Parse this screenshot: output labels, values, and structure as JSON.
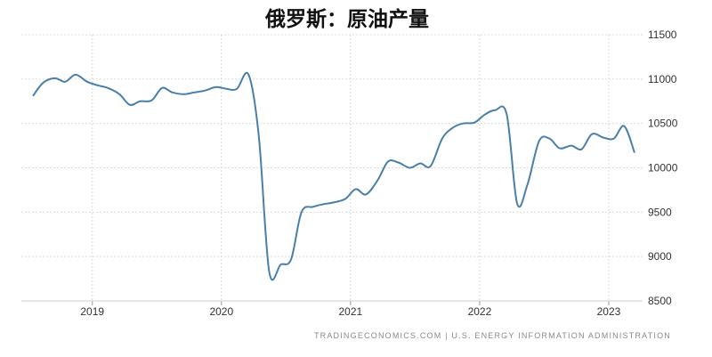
{
  "chart_data": {
    "type": "line",
    "title": "俄罗斯：原油产量",
    "xlabel": "",
    "ylabel": "",
    "ylim": [
      8500,
      11500
    ],
    "yticks": [
      8500,
      9000,
      9500,
      10000,
      10500,
      11000,
      11500
    ],
    "xlim": [
      2018.54,
      2023.2
    ],
    "xticks": [
      2019,
      2020,
      2021,
      2022,
      2023
    ],
    "grid": true,
    "legend": "none",
    "line_color": "#4a7fa8",
    "series": [
      {
        "points": [
          [
            2018.54,
            10810
          ],
          [
            2018.62,
            10960
          ],
          [
            2018.71,
            11010
          ],
          [
            2018.79,
            10970
          ],
          [
            2018.87,
            11050
          ],
          [
            2018.96,
            10970
          ],
          [
            2019.04,
            10930
          ],
          [
            2019.12,
            10900
          ],
          [
            2019.21,
            10830
          ],
          [
            2019.29,
            10710
          ],
          [
            2019.37,
            10750
          ],
          [
            2019.46,
            10760
          ],
          [
            2019.54,
            10900
          ],
          [
            2019.62,
            10850
          ],
          [
            2019.71,
            10830
          ],
          [
            2019.79,
            10850
          ],
          [
            2019.87,
            10870
          ],
          [
            2019.96,
            10910
          ],
          [
            2020.04,
            10890
          ],
          [
            2020.12,
            10890
          ],
          [
            2020.21,
            11050
          ],
          [
            2020.29,
            10350
          ],
          [
            2020.37,
            8830
          ],
          [
            2020.46,
            8910
          ],
          [
            2020.54,
            8970
          ],
          [
            2020.62,
            9500
          ],
          [
            2020.71,
            9560
          ],
          [
            2020.79,
            9590
          ],
          [
            2020.87,
            9610
          ],
          [
            2020.96,
            9650
          ],
          [
            2021.04,
            9760
          ],
          [
            2021.12,
            9700
          ],
          [
            2021.21,
            9860
          ],
          [
            2021.29,
            10070
          ],
          [
            2021.37,
            10060
          ],
          [
            2021.46,
            10000
          ],
          [
            2021.54,
            10050
          ],
          [
            2021.62,
            10020
          ],
          [
            2021.71,
            10330
          ],
          [
            2021.79,
            10450
          ],
          [
            2021.87,
            10500
          ],
          [
            2021.96,
            10510
          ],
          [
            2022.04,
            10600
          ],
          [
            2022.12,
            10650
          ],
          [
            2022.21,
            10600
          ],
          [
            2022.29,
            9600
          ],
          [
            2022.37,
            9810
          ],
          [
            2022.46,
            10300
          ],
          [
            2022.54,
            10330
          ],
          [
            2022.62,
            10220
          ],
          [
            2022.71,
            10250
          ],
          [
            2022.79,
            10210
          ],
          [
            2022.87,
            10380
          ],
          [
            2022.96,
            10340
          ],
          [
            2023.04,
            10330
          ],
          [
            2023.12,
            10470
          ],
          [
            2023.2,
            10170
          ]
        ]
      }
    ]
  },
  "source": "TRADINGECONOMICS.COM  |  U.S. ENERGY INFORMATION ADMINISTRATION"
}
